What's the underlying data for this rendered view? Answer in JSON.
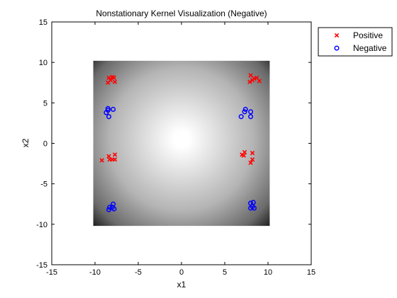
{
  "chart_data": {
    "type": "scatter",
    "title": "Nonstationary Kernel Visualization (Negative)",
    "xlabel": "x1",
    "ylabel": "x2",
    "xlim": [
      -15,
      15
    ],
    "ylim": [
      -15,
      15
    ],
    "xticks": [
      -15,
      -10,
      -5,
      0,
      5,
      10,
      15
    ],
    "yticks": [
      -15,
      -10,
      -5,
      0,
      5,
      10,
      15
    ],
    "grid": false,
    "legend_position": "outside-top-right",
    "background_image": {
      "type": "radial-grayscale-heatmap",
      "x_range": [
        -10.2,
        10.2
      ],
      "y_range": [
        -10.2,
        10.2
      ],
      "center": [
        0,
        0.5
      ],
      "center_color": "#ffffff",
      "edge_color": "#000000"
    },
    "series": [
      {
        "name": "Positive",
        "marker": "x",
        "color": "#ff0000",
        "points": [
          [
            -8.4,
            8.1
          ],
          [
            -8.0,
            8.2
          ],
          [
            -7.8,
            8.1
          ],
          [
            -8.2,
            7.8
          ],
          [
            -8.5,
            7.5
          ],
          [
            -7.7,
            7.6
          ],
          [
            8.0,
            8.4
          ],
          [
            8.4,
            8.0
          ],
          [
            8.7,
            8.1
          ],
          [
            8.2,
            7.8
          ],
          [
            7.9,
            7.6
          ],
          [
            9.0,
            7.7
          ],
          [
            -9.2,
            -2.1
          ],
          [
            -8.4,
            -1.6
          ],
          [
            -8.0,
            -2.0
          ],
          [
            -7.7,
            -1.4
          ],
          [
            -7.7,
            -2.0
          ],
          [
            -8.3,
            -2.0
          ],
          [
            7.3,
            -1.1
          ],
          [
            7.2,
            -1.5
          ],
          [
            7.0,
            -1.4
          ],
          [
            8.2,
            -1.2
          ],
          [
            8.2,
            -2.0
          ],
          [
            8.0,
            -2.4
          ]
        ]
      },
      {
        "name": "Negative",
        "marker": "o",
        "color": "#0000ff",
        "points": [
          [
            -8.7,
            3.8
          ],
          [
            -8.5,
            4.1
          ],
          [
            -8.5,
            4.3
          ],
          [
            -7.9,
            4.2
          ],
          [
            -8.4,
            3.3
          ],
          [
            7.4,
            4.2
          ],
          [
            7.3,
            3.9
          ],
          [
            8.0,
            3.9
          ],
          [
            8.0,
            3.3
          ],
          [
            6.9,
            3.3
          ],
          [
            -8.3,
            -7.9
          ],
          [
            -7.9,
            -7.5
          ],
          [
            -8.0,
            -7.9
          ],
          [
            -8.4,
            -8.2
          ],
          [
            -7.8,
            -8.1
          ],
          [
            8.0,
            -7.4
          ],
          [
            8.3,
            -7.3
          ],
          [
            8.4,
            -8.0
          ],
          [
            8.0,
            -8.0
          ],
          [
            8.2,
            -7.8
          ]
        ]
      }
    ]
  }
}
